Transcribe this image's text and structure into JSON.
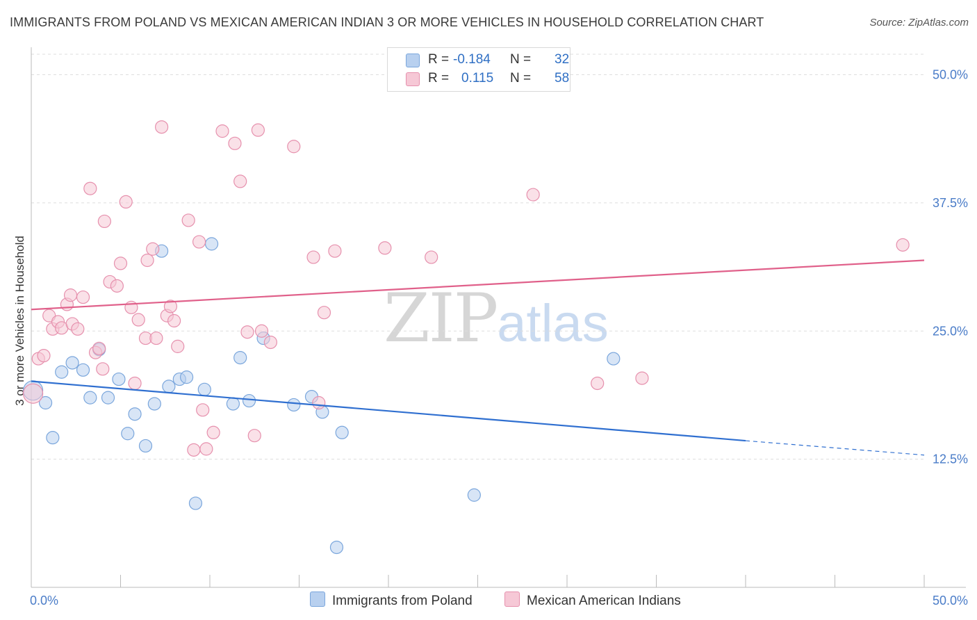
{
  "title": "IMMIGRANTS FROM POLAND VS MEXICAN AMERICAN INDIAN 3 OR MORE VEHICLES IN HOUSEHOLD CORRELATION CHART",
  "source": "Source: ZipAtlas.com",
  "watermark": {
    "zip": "ZIP",
    "atlas": "atlas"
  },
  "legend": {
    "rows": [
      {
        "r_label": "R =",
        "r_value": "-0.184",
        "n_label": "N =",
        "n_value": "32"
      },
      {
        "r_label": "R =",
        "r_value": "0.115",
        "n_label": "N =",
        "n_value": "58"
      }
    ]
  },
  "colors": {
    "blue_fill": "#b8d0ef",
    "blue_stroke": "#7aa6dc",
    "blue_line": "#2f6fd0",
    "pink_fill": "#f6c8d6",
    "pink_stroke": "#e690ad",
    "pink_line": "#e0608a",
    "tick_text": "#4a7cc8",
    "grid": "#dddddd"
  },
  "chart_data": {
    "type": "scatter",
    "ylabel": "3 or more Vehicles in Household",
    "xlim": [
      0,
      50
    ],
    "ylim": [
      0,
      52
    ],
    "x_tick_labels": [
      {
        "value": 0,
        "label": "0.0%"
      },
      {
        "value": 50,
        "label": "50.0%"
      }
    ],
    "y_tick_labels": [
      {
        "value": 12.5,
        "label": "12.5%"
      },
      {
        "value": 25,
        "label": "25.0%"
      },
      {
        "value": 37.5,
        "label": "37.5%"
      },
      {
        "value": 50,
        "label": "50.0%"
      }
    ],
    "x_minor_ticks": [
      0,
      5,
      10,
      15,
      20,
      25,
      30,
      35,
      40,
      45,
      50
    ],
    "grid": true,
    "series": [
      {
        "name": "Immigrants from Poland",
        "color": "blue",
        "points": [
          [
            0.1,
            19.2
          ],
          [
            0.8,
            18.0
          ],
          [
            1.2,
            14.6
          ],
          [
            1.7,
            21.0
          ],
          [
            2.3,
            21.9
          ],
          [
            2.9,
            21.2
          ],
          [
            3.3,
            18.5
          ],
          [
            3.8,
            23.2
          ],
          [
            4.3,
            18.5
          ],
          [
            4.9,
            20.3
          ],
          [
            5.4,
            15.0
          ],
          [
            5.8,
            16.9
          ],
          [
            6.4,
            13.8
          ],
          [
            6.9,
            17.9
          ],
          [
            7.3,
            32.8
          ],
          [
            7.7,
            19.6
          ],
          [
            8.3,
            20.3
          ],
          [
            8.7,
            20.5
          ],
          [
            9.2,
            8.2
          ],
          [
            9.7,
            19.3
          ],
          [
            10.1,
            33.5
          ],
          [
            11.3,
            17.9
          ],
          [
            11.7,
            22.4
          ],
          [
            12.2,
            18.2
          ],
          [
            13.0,
            24.3
          ],
          [
            14.7,
            17.8
          ],
          [
            15.7,
            18.6
          ],
          [
            16.3,
            17.1
          ],
          [
            17.4,
            15.1
          ],
          [
            17.1,
            3.9
          ],
          [
            24.8,
            9.0
          ],
          [
            32.6,
            22.3
          ]
        ],
        "trend": {
          "x0": 0,
          "y0": 20.1,
          "x1": 40,
          "y1": 14.3,
          "dash_x1": 50,
          "dash_y1": 12.9
        }
      },
      {
        "name": "Mexican American Indians",
        "color": "pink",
        "points": [
          [
            0.1,
            18.9
          ],
          [
            0.4,
            22.3
          ],
          [
            0.7,
            22.6
          ],
          [
            1.0,
            26.5
          ],
          [
            1.2,
            25.2
          ],
          [
            1.5,
            25.9
          ],
          [
            1.7,
            25.3
          ],
          [
            2.0,
            27.6
          ],
          [
            2.2,
            28.5
          ],
          [
            2.3,
            25.7
          ],
          [
            2.6,
            25.2
          ],
          [
            2.9,
            28.3
          ],
          [
            3.3,
            38.9
          ],
          [
            3.6,
            22.9
          ],
          [
            3.8,
            23.3
          ],
          [
            4.0,
            21.3
          ],
          [
            4.1,
            35.7
          ],
          [
            4.4,
            29.8
          ],
          [
            4.8,
            29.4
          ],
          [
            5.0,
            31.6
          ],
          [
            5.3,
            37.6
          ],
          [
            5.6,
            27.3
          ],
          [
            5.8,
            19.9
          ],
          [
            6.0,
            26.1
          ],
          [
            6.4,
            24.3
          ],
          [
            6.5,
            31.9
          ],
          [
            6.8,
            33.0
          ],
          [
            7.0,
            24.3
          ],
          [
            7.3,
            44.9
          ],
          [
            7.6,
            26.5
          ],
          [
            7.8,
            27.4
          ],
          [
            8.0,
            26.0
          ],
          [
            8.2,
            23.5
          ],
          [
            8.8,
            35.8
          ],
          [
            9.1,
            13.4
          ],
          [
            9.4,
            33.7
          ],
          [
            9.6,
            17.3
          ],
          [
            9.8,
            13.5
          ],
          [
            10.2,
            15.1
          ],
          [
            10.7,
            44.5
          ],
          [
            11.4,
            43.3
          ],
          [
            11.7,
            39.6
          ],
          [
            12.1,
            24.9
          ],
          [
            12.5,
            14.8
          ],
          [
            12.7,
            44.6
          ],
          [
            12.9,
            25.0
          ],
          [
            13.4,
            23.9
          ],
          [
            14.7,
            43.0
          ],
          [
            15.8,
            32.2
          ],
          [
            16.1,
            18.0
          ],
          [
            16.4,
            26.8
          ],
          [
            17.0,
            32.8
          ],
          [
            19.8,
            33.1
          ],
          [
            22.4,
            32.2
          ],
          [
            28.1,
            38.3
          ],
          [
            31.7,
            19.9
          ],
          [
            34.2,
            20.4
          ],
          [
            48.8,
            33.4
          ]
        ],
        "trend": {
          "x0": 0,
          "y0": 27.1,
          "x1": 50,
          "y1": 31.9
        }
      }
    ]
  }
}
